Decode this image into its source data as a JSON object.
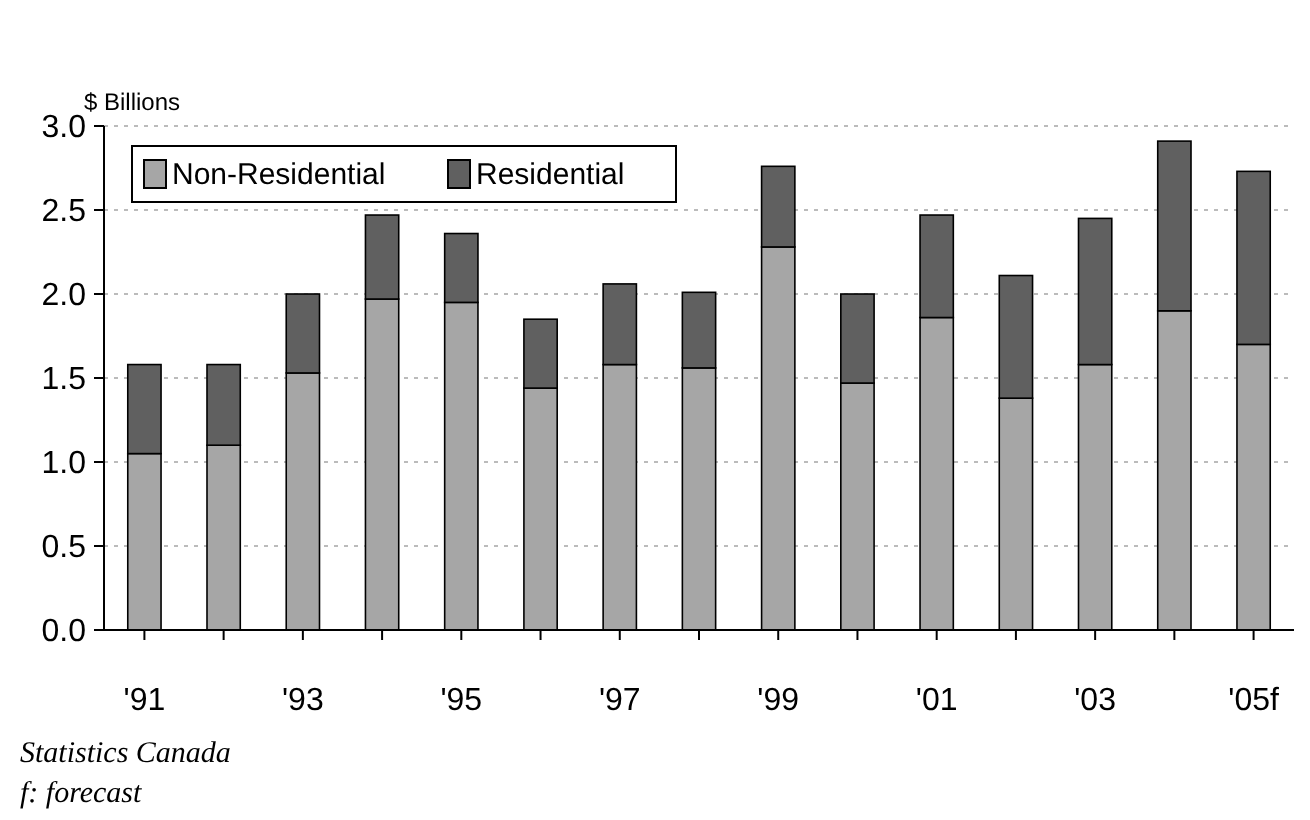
{
  "chart_data": {
    "type": "bar",
    "stacked": true,
    "ylabel": "$ Billions",
    "categories": [
      "'91",
      null,
      "'93",
      null,
      "'95",
      null,
      "'97",
      null,
      "'99",
      null,
      "'01",
      null,
      "'03",
      null,
      "'05f"
    ],
    "series": [
      {
        "name": "Non-Residential",
        "color": "#a6a6a6",
        "values": [
          1.05,
          1.1,
          1.53,
          1.97,
          1.95,
          1.44,
          1.58,
          1.56,
          2.28,
          1.47,
          1.86,
          1.38,
          1.58,
          1.9,
          1.7
        ]
      },
      {
        "name": "Residential",
        "color": "#606060",
        "values": [
          0.53,
          0.48,
          0.47,
          0.5,
          0.41,
          0.41,
          0.48,
          0.45,
          0.48,
          0.53,
          0.61,
          0.73,
          0.87,
          1.01,
          1.03
        ]
      }
    ],
    "ylim": [
      0,
      3
    ],
    "yticks": [
      {
        "value": 0,
        "label": "0.0"
      },
      {
        "value": 0.5,
        "label": "0.5"
      },
      {
        "value": 1,
        "label": "1.0"
      },
      {
        "value": 1.5,
        "label": "1.5"
      },
      {
        "value": 2,
        "label": "2.0"
      },
      {
        "value": 2.5,
        "label": "2.5"
      },
      {
        "value": 3,
        "label": "3.0"
      }
    ],
    "grid": "y",
    "legend": "top left",
    "annotations": [
      "Statistics Canada",
      "f: forecast"
    ]
  }
}
